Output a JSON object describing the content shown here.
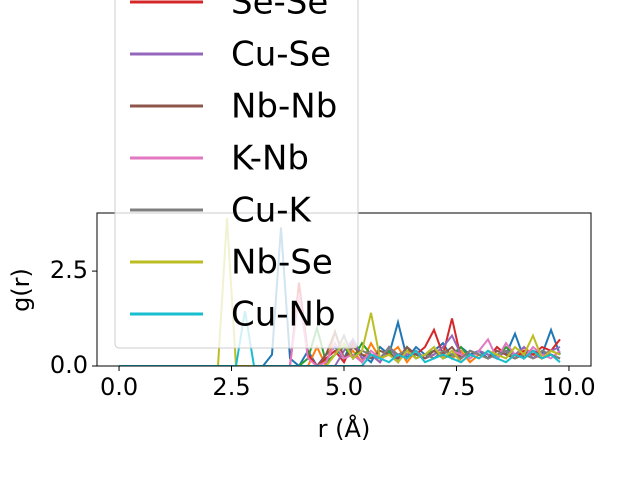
{
  "chart_data": {
    "type": "line",
    "xlabel": "r (Å)",
    "ylabel": "g(r)",
    "x": [
      0,
      0.2,
      0.4,
      0.6,
      0.8,
      1,
      1.2,
      1.4,
      1.6,
      1.8,
      2,
      2.2,
      2.4,
      2.6,
      2.8,
      3,
      3.2,
      3.4,
      3.6,
      3.8,
      4,
      4.2,
      4.4,
      4.6,
      4.8,
      5,
      5.2,
      5.4,
      5.6,
      5.8,
      6,
      6.2,
      6.4,
      6.6,
      6.8,
      7,
      7.2,
      7.4,
      7.6,
      7.8,
      8,
      8.2,
      8.4,
      8.6,
      8.8,
      9,
      9.2,
      9.4,
      9.6,
      9.8
    ],
    "xlim": [
      -0.49,
      10.49
    ],
    "xticks": [
      {
        "value": 0,
        "label": "0.0"
      },
      2.5,
      {
        "value": 5,
        "label": "5.0"
      },
      7.5,
      {
        "value": 10,
        "label": "10.0"
      }
    ],
    "ylim": [
      0,
      4.03
    ],
    "yticks": [
      {
        "value": 0,
        "label": "0.0"
      },
      2.5
    ],
    "series": [
      {
        "color": "#1f77b4",
        "values": [
          0,
          0,
          0,
          0,
          0,
          0,
          0,
          0,
          0,
          0,
          0,
          0,
          0,
          0,
          0,
          0,
          0,
          0.3,
          3.65,
          0.2,
          0,
          0.4,
          0,
          0.3,
          0.5,
          0.2,
          0.7,
          0.3,
          0.1,
          0.5,
          0.3,
          1.15,
          0.2,
          0.5,
          0.3,
          0.4,
          0.6,
          0.2,
          0.5,
          0.3,
          0.4,
          0.2,
          0.5,
          0.3,
          0.85,
          0.2,
          0.4,
          0.3,
          0.95,
          0.3
        ]
      },
      {
        "color": "#ff7f0e",
        "values": [
          0,
          0,
          0,
          0,
          0,
          0,
          0,
          0,
          0,
          0,
          0,
          0,
          0,
          0,
          0,
          0,
          0,
          0,
          0,
          0,
          0,
          0,
          0.5,
          0,
          0.9,
          0.2,
          0.4,
          0.1,
          0.6,
          0.2,
          0.3,
          0.5,
          0.1,
          0.4,
          0.2,
          0.3,
          0.5,
          0.2,
          0.4,
          0.1,
          0.3,
          0.2,
          0.4,
          0.3,
          0.2,
          0.5,
          0.3,
          0.2,
          0.4,
          0.3
        ]
      },
      {
        "color": "#2ca02c",
        "values": [
          0,
          0,
          0,
          0,
          0,
          0,
          0,
          0,
          0,
          0,
          0,
          0,
          0,
          0,
          0,
          0,
          0,
          0,
          0,
          0,
          0,
          0.2,
          1.0,
          0.1,
          0.3,
          0.5,
          0.2,
          0.6,
          0.3,
          0.2,
          0.4,
          0.1,
          0.5,
          0.2,
          0.3,
          0.4,
          0.2,
          0.3,
          0.5,
          0.2,
          0.4,
          0.3,
          0.2,
          0.5,
          0.3,
          0.2,
          0.4,
          0.2,
          0.3,
          0.2
        ]
      },
      {
        "name": "Se-Se",
        "color": "#d62728",
        "values": [
          0,
          0,
          0,
          0,
          0,
          0,
          0,
          0,
          0,
          0,
          0,
          0,
          0,
          0,
          0,
          0,
          0,
          0,
          0,
          0,
          2.2,
          0.3,
          0,
          0.2,
          0.4,
          0.1,
          0.6,
          0.2,
          0.3,
          0.1,
          0.5,
          0.2,
          0.4,
          0.3,
          0.5,
          0.95,
          0.3,
          1.25,
          0.2,
          0.4,
          0.3,
          0.2,
          0.5,
          0.3,
          0.2,
          0.4,
          0.3,
          0.5,
          0.4,
          0.7
        ]
      },
      {
        "name": "Cu-Se",
        "color": "#9467bd",
        "values": [
          0,
          0,
          0,
          0,
          0,
          0,
          0,
          0,
          0,
          0,
          0,
          0,
          0,
          0,
          0,
          0,
          0,
          0,
          0,
          0,
          0,
          0,
          0,
          0,
          0,
          0.4,
          0.7,
          0.2,
          0.3,
          0.1,
          0.5,
          0.2,
          0.3,
          0.4,
          0.2,
          0.3,
          0.5,
          0.8,
          0.3,
          0.2,
          0.4,
          0.3,
          0.2,
          0.4,
          0.3,
          0.5,
          0.2,
          0.3,
          0.4,
          0.5
        ]
      },
      {
        "name": "Nb-Nb",
        "color": "#8c564b",
        "values": [
          0,
          0,
          0,
          0,
          0,
          0,
          0,
          0,
          0,
          0,
          0,
          0,
          0,
          0,
          0,
          0,
          0,
          0,
          0,
          0,
          0,
          0,
          0,
          0.3,
          0.9,
          0.2,
          0.5,
          0.3,
          0.2,
          0.4,
          0.3,
          0.2,
          0.5,
          0.3,
          0.2,
          0.4,
          0.3,
          0.5,
          0.2,
          0.4,
          0.3,
          0.2,
          0.4,
          0.3,
          0.2,
          0.3,
          0.4,
          0.2,
          0.3,
          0.2
        ]
      },
      {
        "name": "K-Nb",
        "color": "#e377c2",
        "values": [
          0,
          0,
          0,
          0,
          0,
          0,
          0,
          0,
          0,
          0,
          0,
          0,
          0,
          0,
          0,
          0,
          0,
          0,
          0,
          0,
          1.9,
          0.2,
          0,
          0.1,
          0.6,
          0.2,
          0.3,
          0.1,
          0.4,
          0.2,
          0.3,
          0.1,
          0.4,
          0.2,
          0.3,
          0.5,
          0.2,
          0.4,
          0.3,
          0.2,
          0.4,
          0.7,
          0.2,
          0.6,
          0.3,
          0.2,
          0.5,
          0.3,
          0.2,
          0.4
        ]
      },
      {
        "name": "Cu-K",
        "color": "#7f7f7f",
        "values": [
          0,
          0,
          0,
          0,
          0,
          0,
          0,
          0,
          0,
          0,
          0,
          0,
          0,
          0,
          0,
          0,
          0,
          0,
          0,
          0,
          0,
          0,
          0,
          0,
          0.3,
          0.8,
          0.2,
          0.4,
          0.3,
          0.2,
          0.5,
          0.3,
          0.4,
          0.2,
          0.3,
          0.2,
          0.4,
          0.3,
          0.2,
          0.4,
          0.3,
          0.2,
          0.3,
          0.4,
          0.2,
          0.3,
          0.2,
          0.4,
          0.3,
          0.2
        ]
      },
      {
        "name": "Nb-Se",
        "color": "#bcbd22",
        "values": [
          0,
          0,
          0,
          0,
          0,
          0,
          0,
          0,
          0,
          0,
          0,
          0,
          3.9,
          0,
          0,
          0,
          0,
          0,
          0,
          0,
          0,
          0,
          0,
          0,
          0.3,
          0.6,
          0.2,
          0.4,
          1.4,
          0.2,
          0.3,
          0.1,
          0.4,
          0.2,
          0.3,
          0.5,
          0.2,
          0.4,
          0.1,
          0.3,
          0.2,
          0.4,
          0.3,
          0.2,
          0.5,
          0.3,
          0.8,
          0.2,
          0.4,
          0.3
        ]
      },
      {
        "name": "Cu-Nb",
        "color": "#17becf",
        "values": [
          0,
          0,
          0,
          0,
          0,
          0,
          0,
          0,
          0,
          0,
          0,
          0,
          0,
          0,
          1.45,
          0,
          0,
          0,
          0,
          0,
          0,
          0,
          0,
          0,
          0,
          0,
          0,
          0,
          0.3,
          0.2,
          0.1,
          0.3,
          0.2,
          0.4,
          0.1,
          0.2,
          0.3,
          0.2,
          0.1,
          0.3,
          0.2,
          0.4,
          0.2,
          0.1,
          0.3,
          0.2,
          0.4,
          0.2,
          0.3,
          0.1
        ]
      }
    ]
  }
}
